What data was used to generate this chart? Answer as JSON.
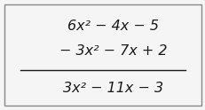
{
  "line1": "6x² − 4x − 5",
  "line2": "− 3x² − 7x + 2",
  "line3": "3x² − 11x − 3",
  "bg_color": "#f5f5f5",
  "border_color": "#888888",
  "text_color": "#1a1a1a",
  "line_color": "#1a1a1a",
  "font_size": 11.5,
  "figsize": [
    2.32,
    1.24
  ],
  "dpi": 100
}
